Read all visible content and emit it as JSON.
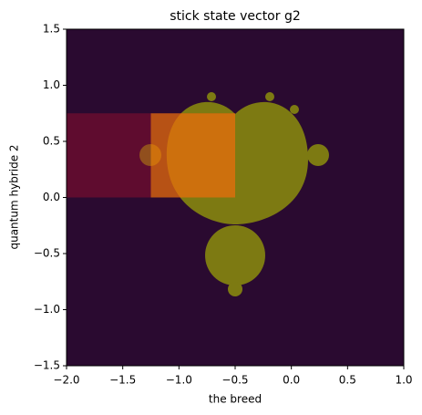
{
  "chart_data": {
    "type": "image",
    "title": "stick state vector g2",
    "x_label": "the breed",
    "y_label": "quantum hybride 2",
    "xlim": [
      -2,
      1
    ],
    "ylim": [
      -1.5,
      1.5
    ],
    "xticks": [
      {
        "value": -2,
        "label": "−2.0"
      },
      {
        "value": -1.5,
        "label": "−1.5"
      },
      {
        "value": -1,
        "label": "−1.0"
      },
      {
        "value": -0.5,
        "label": "−0.5"
      },
      {
        "value": 0,
        "label": "0.0"
      },
      0.5,
      {
        "value": 1,
        "label": "1.0"
      }
    ],
    "yticks": [
      {
        "value": -1.5,
        "label": "−1.5"
      },
      {
        "value": -1,
        "label": "−1.0"
      },
      {
        "value": -0.5,
        "label": "−0.5"
      },
      {
        "value": 0,
        "label": "0.0"
      },
      0.5,
      {
        "value": 1,
        "label": "1.0"
      },
      1.5
    ],
    "rectangles": [
      {
        "x": [
          -2,
          -0.5
        ],
        "y": [
          0,
          0.75
        ],
        "color": "#b01030"
      },
      {
        "x": [
          -1.25,
          -0.5
        ],
        "y": [
          0,
          0.75
        ],
        "color": "#ff8c00"
      }
    ]
  }
}
